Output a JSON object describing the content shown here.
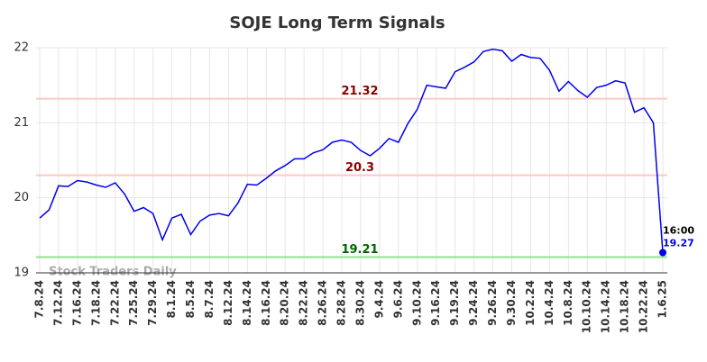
{
  "chart_data": {
    "type": "line",
    "title": "SOJE Long Term Signals",
    "categories": [
      "7.8.24",
      null,
      "7.12.24",
      null,
      "7.16.24",
      null,
      "7.18.24",
      null,
      "7.22.24",
      null,
      "7.25.24",
      null,
      "7.29.24",
      null,
      "8.1.24",
      null,
      "8.5.24",
      null,
      "8.7.24",
      null,
      "8.12.24",
      null,
      "8.14.24",
      null,
      "8.16.24",
      null,
      "8.20.24",
      null,
      "8.22.24",
      null,
      "8.26.24",
      null,
      "8.28.24",
      null,
      "8.30.24",
      null,
      "9.4.24",
      null,
      "9.6.24",
      null,
      "9.10.24",
      null,
      "9.16.24",
      null,
      "9.19.24",
      null,
      "9.24.24",
      null,
      "9.26.24",
      null,
      "9.30.24",
      null,
      "10.2.24",
      null,
      "10.4.24",
      null,
      "10.8.24",
      null,
      "10.10.24",
      null,
      "10.14.24",
      null,
      "10.18.24",
      null,
      "10.22.24",
      null,
      "1.6.25"
    ],
    "values": [
      19.73,
      19.84,
      20.16,
      20.15,
      20.23,
      20.21,
      20.17,
      20.14,
      20.2,
      20.05,
      19.82,
      19.87,
      19.79,
      19.44,
      19.73,
      19.78,
      19.51,
      19.69,
      19.77,
      19.79,
      19.76,
      19.93,
      20.18,
      20.17,
      20.26,
      20.36,
      20.43,
      20.52,
      20.52,
      20.6,
      20.64,
      20.74,
      20.77,
      20.74,
      20.63,
      20.56,
      20.66,
      20.79,
      20.74,
      20.99,
      21.18,
      21.5,
      21.48,
      21.46,
      21.68,
      21.74,
      21.81,
      21.95,
      21.98,
      21.96,
      21.82,
      21.91,
      21.87,
      21.86,
      21.7,
      21.42,
      21.55,
      21.43,
      21.34,
      21.47,
      21.5,
      21.56,
      21.53,
      21.14,
      21.2,
      21.0,
      19.27
    ],
    "color": "#0000ee",
    "ylim": [
      19,
      22
    ],
    "yticks": [
      19,
      20,
      21,
      22
    ],
    "grid": true,
    "hlines": [
      {
        "value": 21.32,
        "color": "#ffc8c8",
        "label_color": "#8b0000"
      },
      {
        "value": 20.3,
        "color": "#ffc8c8",
        "label_color": "#8b0000"
      },
      {
        "value": 19.21,
        "color": "#90e090",
        "label_color": "#006400"
      }
    ],
    "last_time": "16:00",
    "watermark": "Stock Traders Daily"
  }
}
